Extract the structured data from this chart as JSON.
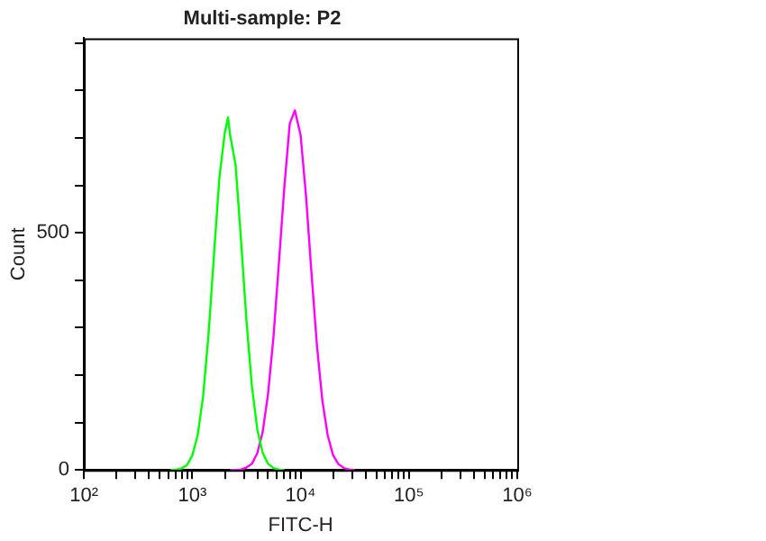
{
  "chart_data": {
    "type": "line",
    "title": "Multi-sample: P2",
    "xlabel": "FITC-H",
    "ylabel": "Count",
    "log": "x",
    "grid": false,
    "legend": false,
    "marker": "none",
    "xlim": [
      100,
      1000000
    ],
    "ylim": [
      0,
      910
    ],
    "xticks": [
      {
        "value": 100,
        "label": "10²"
      },
      {
        "value": 200,
        "label": null
      },
      {
        "value": 300,
        "label": null
      },
      {
        "value": 400,
        "label": null
      },
      {
        "value": 500,
        "label": null
      },
      {
        "value": 600,
        "label": null
      },
      {
        "value": 700,
        "label": null
      },
      {
        "value": 800,
        "label": null
      },
      {
        "value": 900,
        "label": null
      },
      {
        "value": 1000,
        "label": "10³"
      },
      {
        "value": 2000,
        "label": null
      },
      {
        "value": 3000,
        "label": null
      },
      {
        "value": 4000,
        "label": null
      },
      {
        "value": 5000,
        "label": null
      },
      {
        "value": 6000,
        "label": null
      },
      {
        "value": 7000,
        "label": null
      },
      {
        "value": 8000,
        "label": null
      },
      {
        "value": 9000,
        "label": null
      },
      {
        "value": 10000,
        "label": "10⁴"
      },
      {
        "value": 20000,
        "label": null
      },
      {
        "value": 30000,
        "label": null
      },
      {
        "value": 40000,
        "label": null
      },
      {
        "value": 50000,
        "label": null
      },
      {
        "value": 60000,
        "label": null
      },
      {
        "value": 70000,
        "label": null
      },
      {
        "value": 80000,
        "label": null
      },
      {
        "value": 90000,
        "label": null
      },
      {
        "value": 100000,
        "label": "10⁵"
      },
      {
        "value": 200000,
        "label": null
      },
      {
        "value": 300000,
        "label": null
      },
      {
        "value": 400000,
        "label": null
      },
      {
        "value": 500000,
        "label": null
      },
      {
        "value": 600000,
        "label": null
      },
      {
        "value": 700000,
        "label": null
      },
      {
        "value": 800000,
        "label": null
      },
      {
        "value": 900000,
        "label": null
      },
      {
        "value": 1000000,
        "label": "10⁶"
      }
    ],
    "yticks": [
      0,
      {
        "value": 100,
        "label": null
      },
      {
        "value": 200,
        "label": null
      },
      {
        "value": 300,
        "label": null
      },
      {
        "value": 400,
        "label": null
      },
      500,
      {
        "value": 600,
        "label": null
      },
      {
        "value": 700,
        "label": null
      },
      {
        "value": 800,
        "label": null
      },
      {
        "value": 900,
        "label": null
      }
    ],
    "series": [
      {
        "color": "#00ff00",
        "x": [
          631,
          708,
          794,
          891,
          1000,
          1122,
          1259,
          1413,
          1585,
          1778,
          1995,
          2138,
          2239,
          2512,
          2818,
          3162,
          3548,
          3981,
          4467,
          5012,
          5623,
          6310,
          7079
        ],
        "values": [
          0,
          1,
          3,
          10,
          30,
          73,
          155,
          285,
          451,
          615,
          710,
          743,
          705,
          643,
          485,
          316,
          178,
          86,
          36,
          13,
          4,
          1,
          0
        ]
      },
      {
        "color": "#ff00ff",
        "x": [
          2239,
          2512,
          2818,
          3162,
          3548,
          3981,
          4467,
          5012,
          5623,
          6310,
          7079,
          7943,
          8851,
          10000,
          11220,
          12589,
          14125,
          15849,
          17783,
          19953,
          22387,
          25119,
          28184,
          31623
        ],
        "values": [
          0,
          0,
          1,
          5,
          13,
          35,
          80,
          161,
          281,
          437,
          596,
          730,
          758,
          706,
          578,
          417,
          265,
          148,
          73,
          31,
          12,
          4,
          1,
          0
        ]
      }
    ]
  }
}
